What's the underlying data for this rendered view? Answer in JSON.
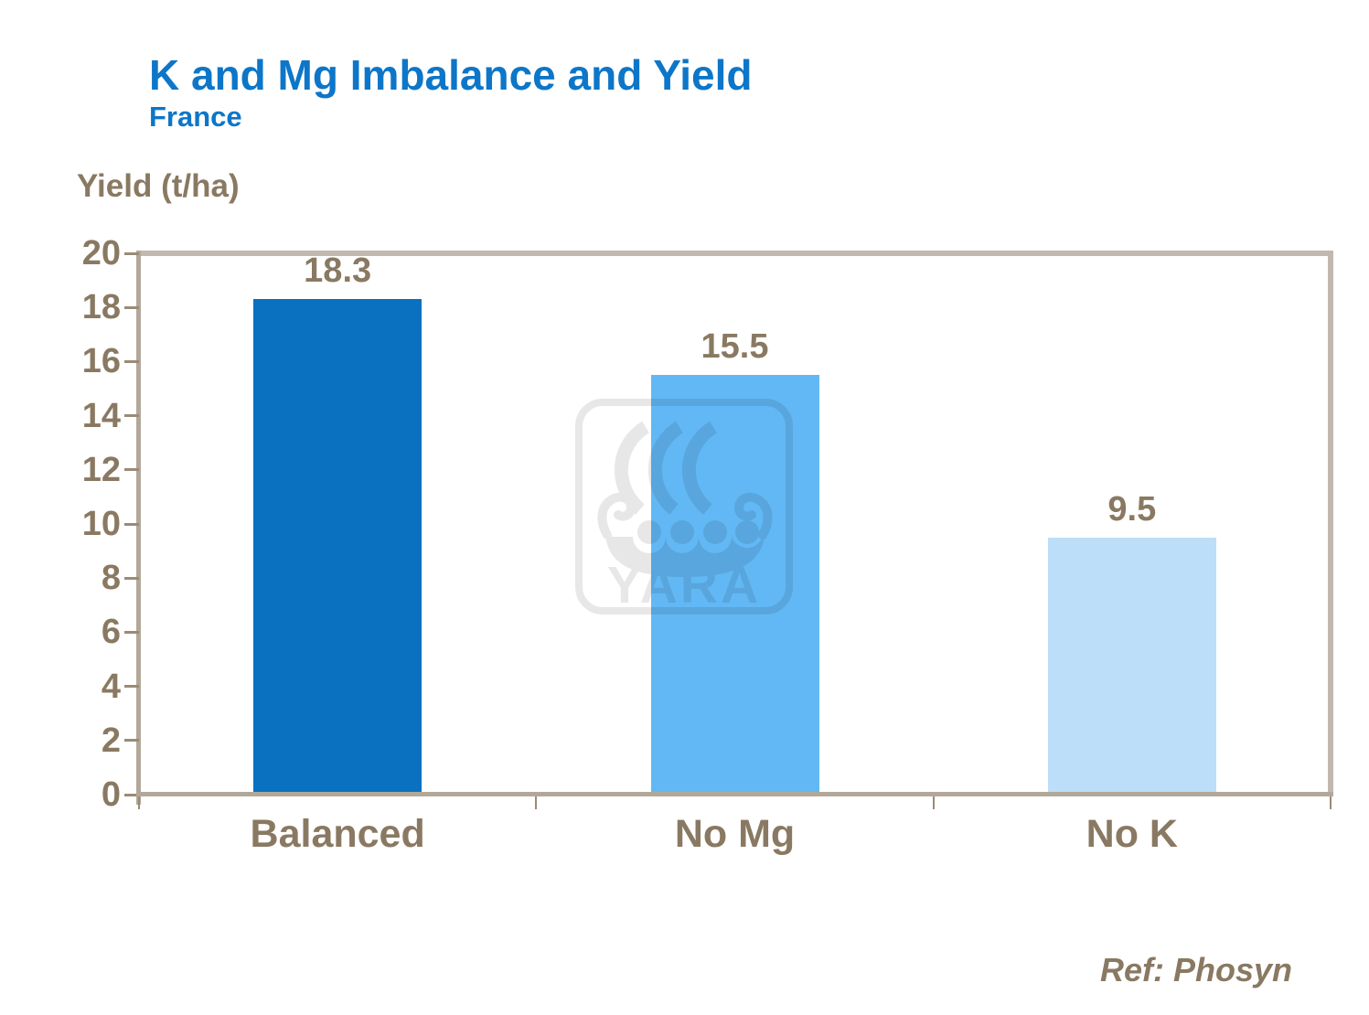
{
  "slide": {
    "title": "K and Mg Imbalance and Yield",
    "subtitle": "France",
    "y_axis_title": "Yield (t/ha)",
    "reference": "Ref: Phosyn",
    "watermark_text": "YARA"
  },
  "colors": {
    "title_blue": "#0d76c8",
    "text_brown": "#8a7962",
    "plot_border": "#c2b9ae",
    "axis_line": "#b2a89a",
    "tick": "#9a8b76",
    "bar_balanced": "#0a71c1",
    "bar_no_mg": "#62b8f4",
    "bar_no_k": "#bcdef8"
  },
  "chart_data": {
    "type": "bar",
    "title": "K and Mg Imbalance and Yield",
    "subtitle": "France",
    "ylabel": "Yield (t/ha)",
    "xlabel": "",
    "categories": [
      "Balanced",
      "No Mg",
      "No K"
    ],
    "values": [
      18.3,
      15.5,
      9.5
    ],
    "data_labels": [
      "18.3",
      "15.5",
      "9.5"
    ],
    "bar_colors": [
      "#0a71c1",
      "#62b8f4",
      "#bcdef8"
    ],
    "ylim": [
      0,
      20
    ],
    "yticks": [
      0,
      2,
      4,
      6,
      8,
      10,
      12,
      14,
      16,
      18,
      20
    ],
    "grid": false,
    "legend": false,
    "annotations": [
      "Ref: Phosyn"
    ]
  }
}
